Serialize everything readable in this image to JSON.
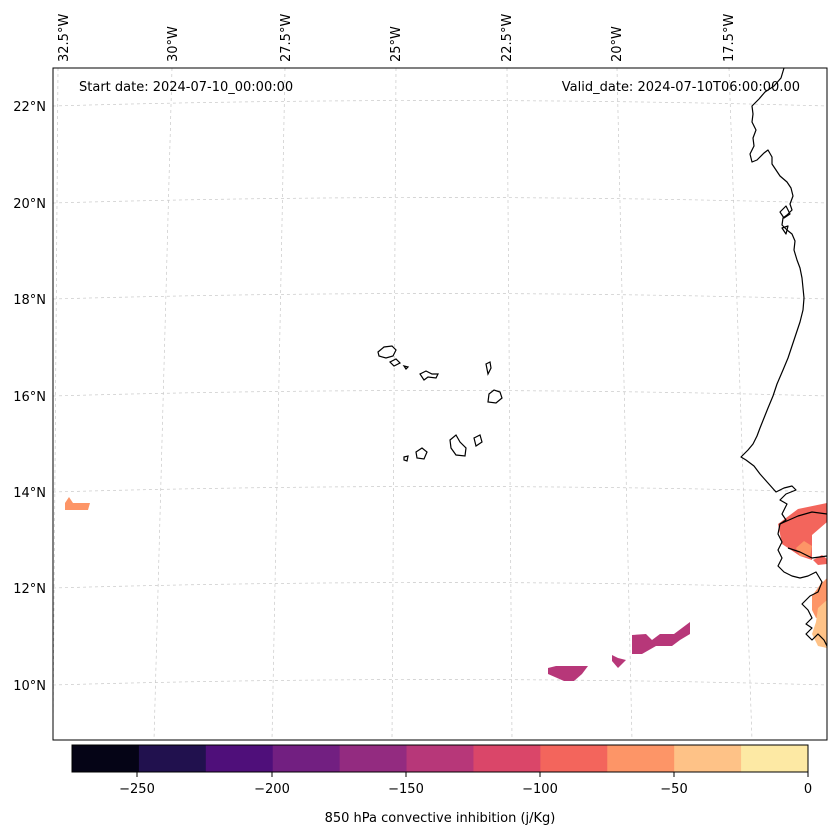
{
  "header": {
    "start_date": "Start date: 2024-07-10_00:00:00",
    "valid_date": "Valid_date: 2024-07-10T06:00:00.00"
  },
  "longitude_labels": [
    "32.5°W",
    "30°W",
    "27.5°W",
    "25°W",
    "22.5°W",
    "20°W",
    "17.5°W"
  ],
  "latitude_labels": [
    "22°N",
    "20°N",
    "18°N",
    "16°N",
    "14°N",
    "12°N",
    "10°N"
  ],
  "colorbar": {
    "label": "850 hPa convective inhibition (j/Kg)",
    "tick_labels": [
      "−250",
      "−200",
      "−150",
      "−100",
      "−50",
      "0"
    ],
    "colors": [
      "#050416",
      "#21114e",
      "#4f0f7a",
      "#721f81",
      "#932b80",
      "#b73779",
      "#da4669",
      "#f3655c",
      "#fd9567",
      "#fec287",
      "#fde9a4"
    ]
  },
  "map": {
    "colors": {
      "coastline": "#000000",
      "gridline": "#c8c8c8",
      "shade_low": "#b73779",
      "shade_mid": "#f3655c",
      "shade_high": "#fd9567",
      "shade_top": "#fec287"
    }
  }
}
